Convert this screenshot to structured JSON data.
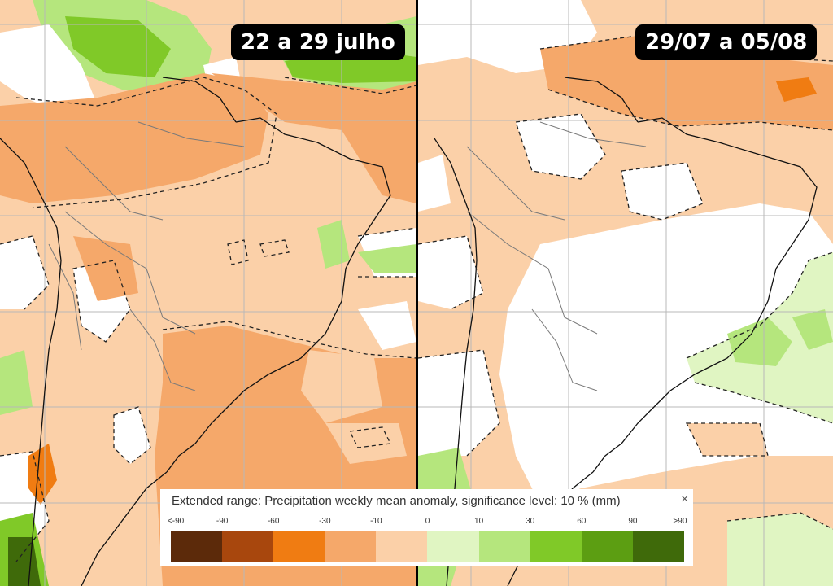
{
  "panels": [
    {
      "label": "22 a 29 julho"
    },
    {
      "label": "29/07 a 05/08"
    }
  ],
  "legend": {
    "title": "Extended range: Precipitation weekly mean anomaly, significance level: 10 % (mm)",
    "close_icon": "×",
    "ticks": [
      "<-90",
      "-90",
      "-60",
      "-30",
      "-10",
      "0",
      "10",
      "30",
      "60",
      "90",
      ">90"
    ],
    "colors": [
      "#5c2a0a",
      "#a8470d",
      "#f07c12",
      "#f5a86a",
      "#fbd0a8",
      "#e0f5c2",
      "#b5e67d",
      "#80c928",
      "#5c9e12",
      "#3f6a0a"
    ]
  },
  "colors": {
    "light_orange": "#fbd0a8",
    "mid_orange": "#f5a86a",
    "strong_orange": "#f07c12",
    "light_green": "#e0f5c2",
    "mid_green": "#80c928",
    "dark_green": "#3f6a0a",
    "grid": "#b8b8b8",
    "coast": "#111111",
    "border": "#7a7a7a"
  }
}
